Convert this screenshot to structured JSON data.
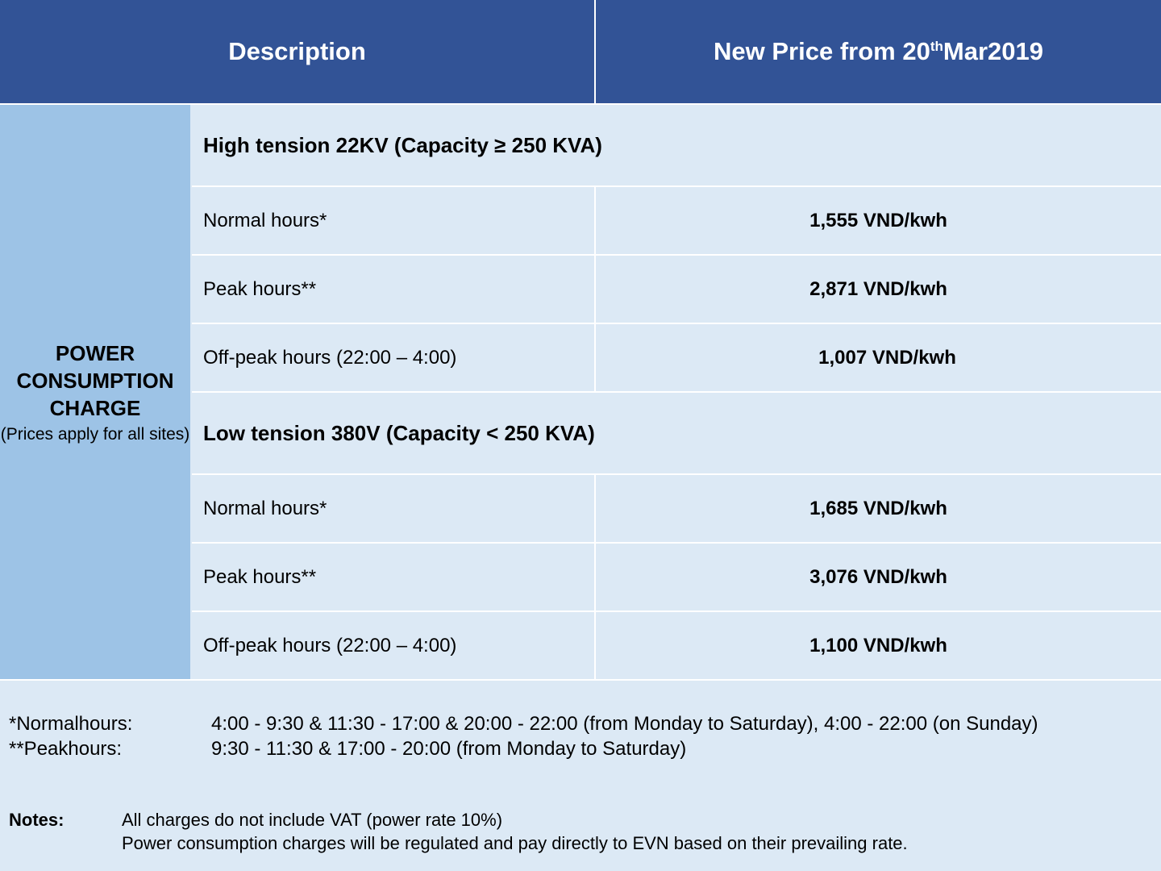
{
  "header": {
    "description": "Description",
    "price_prefix": "New Price from 20",
    "price_sup": "th",
    "price_suffix": "Mar2019"
  },
  "left_band": {
    "title": "POWER CONSUMPTION CHARGE",
    "subtitle": "(Prices apply for all sites)"
  },
  "high_tension": {
    "heading": "High tension 22KV (Capacity ≥ 250 KVA)",
    "rows": [
      {
        "label": "Normal hours*",
        "value": "1,555 VND/kwh"
      },
      {
        "label": "Peak hours**",
        "value": "2,871 VND/kwh"
      },
      {
        "label": "Off-peak hours (22:00 – 4:00)",
        "value": "1,007 VND/kwh"
      }
    ]
  },
  "low_tension": {
    "heading": "Low tension 380V (Capacity < 250 KVA)",
    "rows": [
      {
        "label": "Normal hours*",
        "value": "1,685 VND/kwh"
      },
      {
        "label": "Peak hours**",
        "value": "3,076 VND/kwh"
      },
      {
        "label": "Off-peak hours (22:00 – 4:00)",
        "value": "1,100 VND/kwh"
      }
    ]
  },
  "footnotes": [
    {
      "key": "*Normalhours:",
      "text": "4:00 - 9:30 & 11:30 - 17:00 & 20:00 - 22:00 (from Monday to Saturday), 4:00 - 22:00 (on Sunday)"
    },
    {
      "key": "**Peakhours:",
      "text": "9:30 - 11:30 & 17:00 - 20:00 (from Monday to Saturday)"
    }
  ],
  "notes": {
    "label": "Notes:",
    "lines": [
      "All charges do not include VAT (power rate 10%)",
      "Power consumption charges will be regulated and pay directly to EVN based on their prevailing rate."
    ]
  },
  "colors": {
    "header_bg": "#325396",
    "left_band_bg": "#9dc3e6",
    "body_bg": "#dce9f5"
  }
}
